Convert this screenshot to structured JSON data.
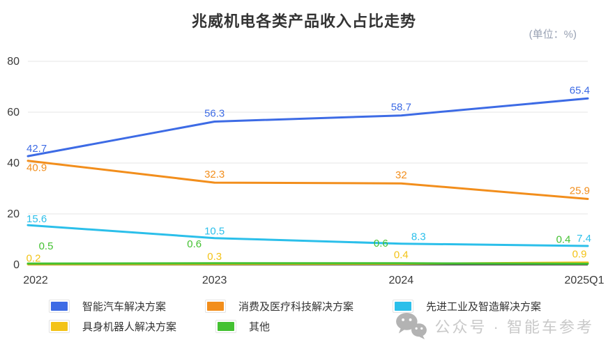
{
  "title": "兆威机电各类产品收入占比走势",
  "unit_label": "(单位：%)",
  "watermark": {
    "icon": "wechat-icon",
    "text": "公众号 · 智能车参考"
  },
  "chart_data": {
    "type": "line",
    "title": "兆威机电各类产品收入占比走势",
    "unit": "%",
    "categories": [
      "2022",
      "2023",
      "2024",
      "2025Q1"
    ],
    "series": [
      {
        "name": "智能汽车解决方案",
        "color": "#3d6be5",
        "values": [
          42.7,
          56.3,
          58.7,
          65.4
        ]
      },
      {
        "name": "消费及医疗科技解决方案",
        "color": "#f28e1c",
        "values": [
          40.9,
          32.3,
          32,
          25.9
        ]
      },
      {
        "name": "先进工业及智造解决方案",
        "color": "#2bbfea",
        "values": [
          15.6,
          10.5,
          8.3,
          7.4
        ]
      },
      {
        "name": "具身机器人解决方案",
        "color": "#f3c318",
        "values": [
          0.2,
          0.3,
          0.4,
          0.9
        ]
      },
      {
        "name": "其他",
        "color": "#44c132",
        "values": [
          0.5,
          0.6,
          0.6,
          0.4
        ]
      }
    ],
    "ylim": [
      0,
      80
    ],
    "yticks": [
      0,
      20,
      40,
      60,
      80
    ],
    "grid": true,
    "legend_position": "bottom",
    "axis_color": "#555555",
    "grid_color": "#e4e4e4",
    "tick_label_color": "#3a3a3a"
  }
}
